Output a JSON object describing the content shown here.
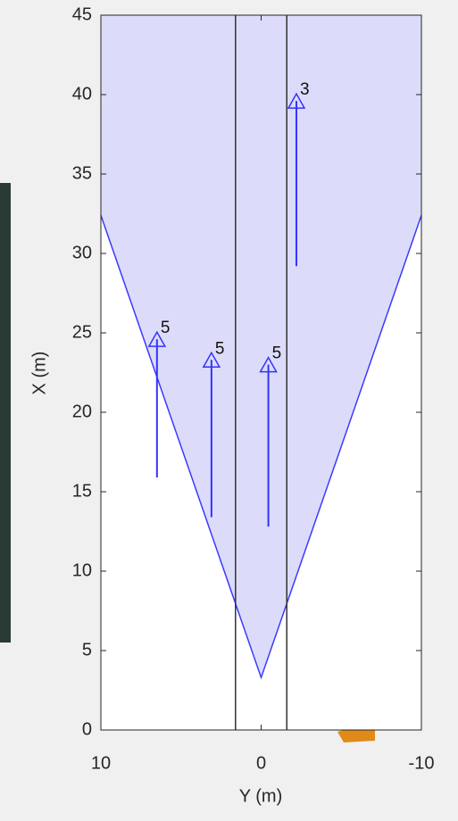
{
  "chart_data": {
    "type": "birdseye",
    "xlabel": "Y (m)",
    "ylabel": "X (m)",
    "xlim": [
      10,
      -10
    ],
    "xticks": [
      10,
      0,
      -10
    ],
    "ylim": [
      0,
      45
    ],
    "yticks": [
      0,
      5,
      10,
      15,
      20,
      25,
      30,
      35,
      40,
      45
    ],
    "coverage": {
      "color": "#dcdcfa",
      "edge": "#3a3aff",
      "x": [
        10,
        0,
        -10,
        -10,
        10
      ],
      "y": [
        32.4,
        3.3,
        32.4,
        45,
        45
      ]
    },
    "lanes": [
      1.6,
      -1.6
    ],
    "detections": {
      "color": "#3333ff",
      "y": [
        6.5,
        3.1,
        -0.45,
        -2.2
      ],
      "x_start": [
        15.9,
        13.4,
        12.8,
        29.2
      ],
      "x_end": [
        24.6,
        23.3,
        23.0,
        39.6
      ],
      "labels": [
        5,
        5,
        5,
        3
      ]
    }
  }
}
